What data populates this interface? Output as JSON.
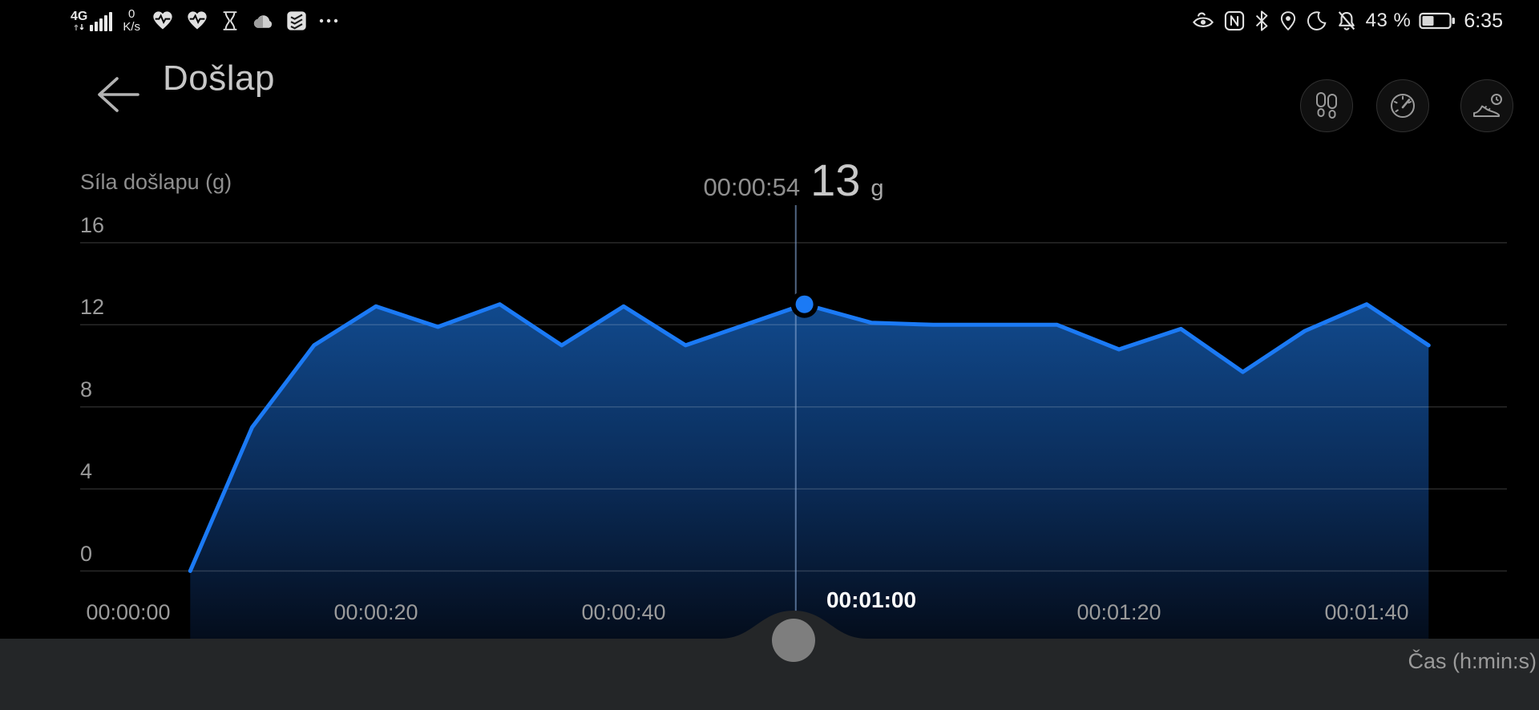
{
  "status_bar": {
    "network_type": "4G",
    "network_speed_value": "0",
    "network_speed_unit": "K/s",
    "battery_level": "43 %",
    "clock": "6:35",
    "left_icon_names": [
      "signal-bars-icon",
      "heart-rate-icon",
      "heart-rate-icon",
      "hourglass-icon",
      "cloud-icon",
      "tasks-icon",
      "more-dots-icon"
    ],
    "right_icon_names": [
      "eye-comfort-icon",
      "nfc-icon",
      "bluetooth-icon",
      "location-icon",
      "do-not-disturb-icon",
      "alarm-muted-icon",
      "battery-icon"
    ]
  },
  "header": {
    "title": "Došlap",
    "action_icon_names": [
      "footprints-icon",
      "cadence-gauge-icon",
      "shoe-history-icon"
    ]
  },
  "tooltip": {
    "time": "00:00:54",
    "value": "13",
    "unit": "g"
  },
  "chart_data": {
    "type": "area",
    "title": "Došlap",
    "ylabel": "Síla došlapu (g)",
    "xlabel": "Čas (h:min:s)",
    "ylim": [
      0,
      16
    ],
    "xlim_seconds": [
      -4,
      111
    ],
    "grid": true,
    "legend": "none",
    "y_ticks": [
      16,
      12,
      8,
      4,
      0
    ],
    "x_ticks": [
      {
        "t": 0,
        "label": "00:00:00",
        "selected": false
      },
      {
        "t": 20,
        "label": "00:00:20",
        "selected": false
      },
      {
        "t": 40,
        "label": "00:00:40",
        "selected": false
      },
      {
        "t": 60,
        "label": "00:01:00",
        "selected": true
      },
      {
        "t": 80,
        "label": "00:01:20",
        "selected": false
      },
      {
        "t": 100,
        "label": "00:01:40",
        "selected": false
      }
    ],
    "series": [
      {
        "name": "Síla došlapu (g)",
        "color": "#1b7af5",
        "points": [
          [
            5,
            0
          ],
          [
            10,
            7
          ],
          [
            15,
            11
          ],
          [
            20,
            12.9
          ],
          [
            25,
            11.9
          ],
          [
            30,
            13
          ],
          [
            35,
            11
          ],
          [
            40,
            12.9
          ],
          [
            45,
            11
          ],
          [
            54.6,
            13
          ],
          [
            60,
            12.1
          ],
          [
            65,
            12
          ],
          [
            70,
            12
          ],
          [
            75,
            12
          ],
          [
            80,
            10.8
          ],
          [
            85,
            11.8
          ],
          [
            90,
            9.7
          ],
          [
            95,
            11.7
          ],
          [
            100,
            13
          ],
          [
            105,
            11
          ]
        ]
      }
    ],
    "selected_point": {
      "t": 54.6,
      "value": 13,
      "time_label": "00:00:54",
      "value_label": "13 g"
    },
    "cursor_t": 53.9,
    "colors": {
      "line": "#1b7af5",
      "fill_top": "#114a8e",
      "fill_mid": "#0a2a55",
      "fill_bottom": "#040d1c",
      "grid_line": "#2d2d2d",
      "tick_text": "#9a9a9a",
      "selected_tick_text": "#ffffff",
      "background": "#000000",
      "handle": "#7e7e7e",
      "strip": "#242628"
    }
  },
  "scrubber": {
    "xlabel": "Čas (h:min:s)"
  }
}
